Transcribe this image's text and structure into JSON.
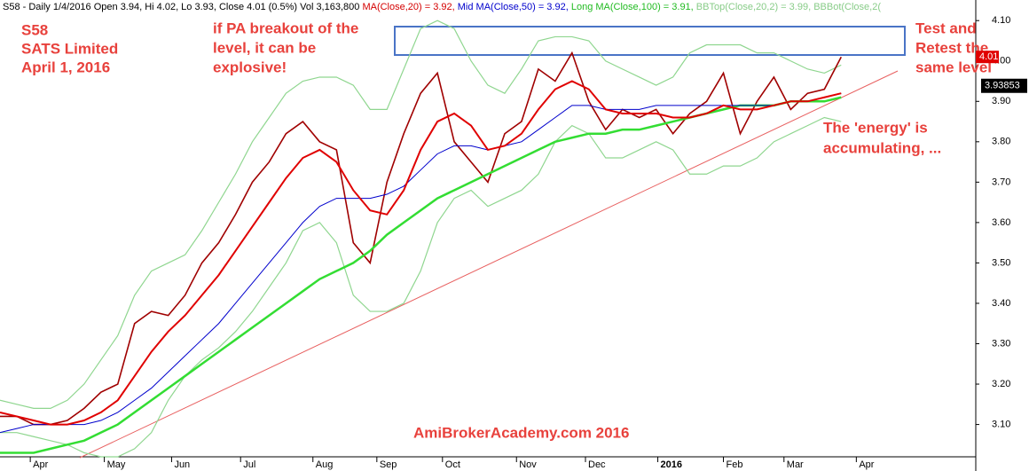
{
  "chart_data": {
    "type": "line",
    "header": [
      {
        "text": "S58 - Daily 1/4/2016 Open 3.94, Hi 4.02, Lo 3.93, Close 4.01 (0.5%) Vol 3,163,800 ",
        "color": "#000000"
      },
      {
        "text": "MA(Close,20) = 3.92, ",
        "color": "#d40000"
      },
      {
        "text": "Mid MA(Close,50) = 3.92, ",
        "color": "#0000cc"
      },
      {
        "text": "Long MA(Close,100) = 3.91, ",
        "color": "#22bb22"
      },
      {
        "text": "BBTop(Close,20,2) = 3.99, ",
        "color": "#88cc88"
      },
      {
        "text": "BBBot(Close,2(",
        "color": "#88cc88"
      }
    ],
    "annotations": {
      "symbol": "S58",
      "name": "SATS Limited",
      "date": "April 1, 2016",
      "breakout": [
        "if PA breakout of the",
        "level, it can be",
        "explosive!"
      ],
      "retest": [
        "Test and",
        "Retest the",
        "same level"
      ],
      "energy": [
        "The 'energy' is",
        "accumulating, ..."
      ],
      "watermark": "AmiBrokerAcademy.com  2016"
    },
    "x": [
      0,
      1,
      2,
      3,
      4,
      5,
      6,
      7,
      8,
      9,
      10,
      11,
      12,
      13,
      14,
      15,
      16,
      17,
      18,
      19,
      20,
      21,
      22,
      23,
      24,
      25,
      26,
      27,
      28,
      29,
      30,
      31,
      32,
      33,
      34,
      35,
      36,
      37,
      38,
      39,
      40,
      41,
      42,
      43,
      44,
      45,
      46,
      47,
      48,
      49,
      50
    ],
    "series": [
      {
        "name": "BBTop",
        "color": "#8fd68f",
        "width": 1.2,
        "values": [
          3.16,
          3.15,
          3.14,
          3.14,
          3.16,
          3.2,
          3.26,
          3.32,
          3.42,
          3.48,
          3.5,
          3.52,
          3.58,
          3.65,
          3.72,
          3.8,
          3.86,
          3.92,
          3.95,
          3.96,
          3.96,
          3.94,
          3.88,
          3.88,
          3.98,
          4.08,
          4.1,
          4.08,
          4.0,
          3.94,
          3.92,
          3.98,
          4.05,
          4.06,
          4.06,
          4.05,
          4.0,
          3.98,
          3.96,
          3.94,
          3.96,
          4.02,
          4.04,
          4.04,
          4.04,
          4.02,
          4.02,
          4.0,
          3.98,
          3.97,
          3.99
        ]
      },
      {
        "name": "BBBot",
        "color": "#8fd68f",
        "width": 1.2,
        "values": [
          3.08,
          3.08,
          3.07,
          3.06,
          3.05,
          3.03,
          3.02,
          3.02,
          3.04,
          3.08,
          3.16,
          3.22,
          3.26,
          3.29,
          3.33,
          3.38,
          3.44,
          3.5,
          3.58,
          3.6,
          3.55,
          3.42,
          3.38,
          3.38,
          3.4,
          3.48,
          3.6,
          3.66,
          3.68,
          3.64,
          3.66,
          3.68,
          3.72,
          3.8,
          3.84,
          3.82,
          3.76,
          3.76,
          3.78,
          3.8,
          3.78,
          3.72,
          3.72,
          3.74,
          3.74,
          3.76,
          3.8,
          3.82,
          3.84,
          3.86,
          3.85
        ]
      },
      {
        "name": "Close",
        "color": "#a00000",
        "width": 1.6,
        "values": [
          3.12,
          3.12,
          3.1,
          3.1,
          3.11,
          3.14,
          3.18,
          3.2,
          3.35,
          3.38,
          3.37,
          3.42,
          3.5,
          3.55,
          3.62,
          3.7,
          3.75,
          3.82,
          3.85,
          3.8,
          3.78,
          3.55,
          3.5,
          3.7,
          3.82,
          3.92,
          3.97,
          3.8,
          3.75,
          3.7,
          3.82,
          3.85,
          3.98,
          3.95,
          4.02,
          3.9,
          3.83,
          3.88,
          3.86,
          3.88,
          3.82,
          3.87,
          3.9,
          3.97,
          3.82,
          3.9,
          3.96,
          3.88,
          3.92,
          3.93,
          4.01
        ]
      },
      {
        "name": "Long MA",
        "color": "#33dd33",
        "width": 2.5,
        "values": [
          3.03,
          3.03,
          3.03,
          3.04,
          3.05,
          3.06,
          3.08,
          3.1,
          3.13,
          3.16,
          3.19,
          3.22,
          3.25,
          3.28,
          3.31,
          3.34,
          3.37,
          3.4,
          3.43,
          3.46,
          3.48,
          3.5,
          3.53,
          3.57,
          3.6,
          3.63,
          3.66,
          3.68,
          3.7,
          3.72,
          3.74,
          3.76,
          3.78,
          3.8,
          3.81,
          3.82,
          3.82,
          3.83,
          3.83,
          3.84,
          3.85,
          3.86,
          3.87,
          3.88,
          3.89,
          3.89,
          3.89,
          3.9,
          3.9,
          3.9,
          3.91
        ]
      },
      {
        "name": "Mid MA",
        "color": "#0000cc",
        "width": 1,
        "values": [
          3.08,
          3.09,
          3.1,
          3.1,
          3.1,
          3.1,
          3.11,
          3.13,
          3.16,
          3.19,
          3.23,
          3.27,
          3.31,
          3.35,
          3.4,
          3.45,
          3.5,
          3.55,
          3.6,
          3.64,
          3.66,
          3.66,
          3.66,
          3.67,
          3.69,
          3.73,
          3.77,
          3.79,
          3.79,
          3.78,
          3.79,
          3.8,
          3.83,
          3.86,
          3.89,
          3.89,
          3.88,
          3.88,
          3.88,
          3.89,
          3.89,
          3.89,
          3.89,
          3.89,
          3.89,
          3.89,
          3.89,
          3.9,
          3.9,
          3.91,
          3.92
        ]
      },
      {
        "name": "MA",
        "color": "#e00000",
        "width": 2,
        "values": [
          3.13,
          3.12,
          3.11,
          3.1,
          3.1,
          3.11,
          3.13,
          3.16,
          3.22,
          3.28,
          3.33,
          3.37,
          3.42,
          3.47,
          3.53,
          3.59,
          3.65,
          3.71,
          3.76,
          3.78,
          3.75,
          3.68,
          3.63,
          3.62,
          3.68,
          3.78,
          3.85,
          3.87,
          3.84,
          3.78,
          3.79,
          3.82,
          3.88,
          3.93,
          3.95,
          3.93,
          3.88,
          3.87,
          3.87,
          3.87,
          3.86,
          3.86,
          3.87,
          3.89,
          3.88,
          3.88,
          3.89,
          3.9,
          3.9,
          3.91,
          3.92
        ]
      }
    ],
    "xlim": [
      0,
      58
    ],
    "xticks": [
      {
        "value": 1.8,
        "label": "Apr"
      },
      {
        "value": 6.2,
        "label": "May"
      },
      {
        "value": 10.2,
        "label": "Jun"
      },
      {
        "value": 14.3,
        "label": "Jul"
      },
      {
        "value": 18.6,
        "label": "Aug"
      },
      {
        "value": 22.4,
        "label": "Sep"
      },
      {
        "value": 26.3,
        "label": "Oct"
      },
      {
        "value": 30.7,
        "label": "Nov"
      },
      {
        "value": 34.8,
        "label": "Dec"
      },
      {
        "value": 39.1,
        "label": "2016"
      },
      {
        "value": 43.0,
        "label": "Feb"
      },
      {
        "value": 46.6,
        "label": "Mar"
      },
      {
        "value": 50.9,
        "label": "Apr"
      }
    ],
    "ylim": [
      3.02,
      4.14
    ],
    "yticks": [
      {
        "value": 3.1,
        "label": "3.10"
      },
      {
        "value": 3.2,
        "label": "3.20"
      },
      {
        "value": 3.3,
        "label": "3.30"
      },
      {
        "value": 3.4,
        "label": "3.40"
      },
      {
        "value": 3.5,
        "label": "3.50"
      },
      {
        "value": 3.6,
        "label": "3.60"
      },
      {
        "value": 3.7,
        "label": "3.70"
      },
      {
        "value": 3.8,
        "label": "3.80"
      },
      {
        "value": 3.9,
        "label": "3.90"
      },
      {
        "value": 4.0,
        "label": "4.00"
      },
      {
        "value": 4.1,
        "label": "4.10"
      }
    ],
    "current_price": 4.01,
    "cursor_price": 3.93853
  }
}
